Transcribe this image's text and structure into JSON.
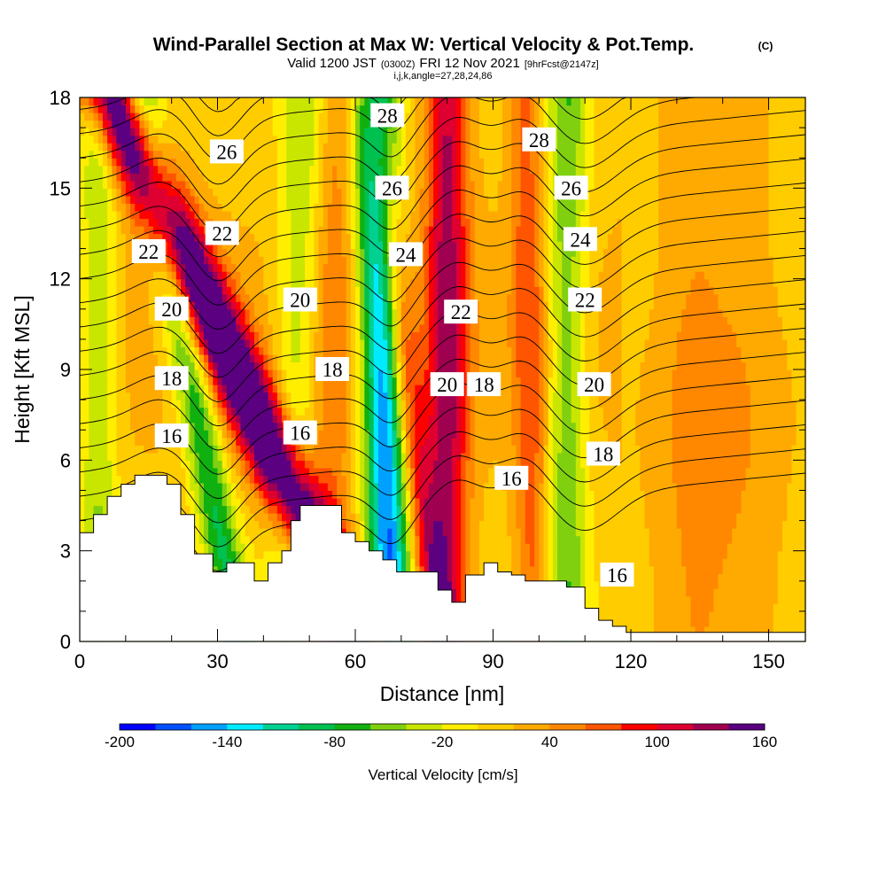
{
  "chart_data": {
    "type": "heatmap",
    "title": "Wind-Parallel Section at Max W: Vertical Velocity & Pot.Temp.",
    "title_mark": "(C)",
    "subtitle_parts": [
      "Valid 1200 JST",
      "(0300Z)",
      "FRI 12 Nov 2021",
      "[9hrFcst@2147z]"
    ],
    "info_line": "i,j,k,angle=27,28,24,86",
    "xlabel": "Distance [nm]",
    "ylabel": "Height [Kft MSL]",
    "xlim": [
      0,
      158
    ],
    "ylim": [
      0,
      18
    ],
    "x_ticks": [
      "0",
      "30",
      "60",
      "90",
      "120",
      "150"
    ],
    "y_ticks": [
      "0",
      "3",
      "6",
      "9",
      "12",
      "15",
      "18"
    ],
    "colorbar": {
      "title": "Vertical Velocity [cm/s]",
      "tick_labels": [
        "-200",
        "-140",
        "-80",
        "-20",
        "40",
        "100",
        "160"
      ],
      "colors": [
        "#0000ff",
        "#0050ff",
        "#00a0ff",
        "#00eaff",
        "#00d090",
        "#00c050",
        "#10b010",
        "#80d010",
        "#c8e600",
        "#ffee00",
        "#ffcc00",
        "#ffaa00",
        "#ff8800",
        "#ff5500",
        "#ff0000",
        "#dd0030",
        "#a00050",
        "#5a0080"
      ]
    },
    "contour_labels": [
      {
        "text": "26",
        "x": 32,
        "y": 16.2
      },
      {
        "text": "22",
        "x": 31,
        "y": 13.5
      },
      {
        "text": "22",
        "x": 15,
        "y": 12.9
      },
      {
        "text": "20",
        "x": 20,
        "y": 11.0
      },
      {
        "text": "18",
        "x": 20,
        "y": 8.7
      },
      {
        "text": "16",
        "x": 20,
        "y": 6.8
      },
      {
        "text": "20",
        "x": 48,
        "y": 11.3
      },
      {
        "text": "18",
        "x": 55,
        "y": 9.0
      },
      {
        "text": "16",
        "x": 48,
        "y": 6.9
      },
      {
        "text": "28",
        "x": 67,
        "y": 17.4
      },
      {
        "text": "26",
        "x": 68,
        "y": 15.0
      },
      {
        "text": "24",
        "x": 71,
        "y": 12.8
      },
      {
        "text": "22",
        "x": 83,
        "y": 10.9
      },
      {
        "text": "20",
        "x": 80,
        "y": 8.5
      },
      {
        "text": "18",
        "x": 88,
        "y": 8.5
      },
      {
        "text": "16",
        "x": 94,
        "y": 5.4
      },
      {
        "text": "28",
        "x": 100,
        "y": 16.6
      },
      {
        "text": "26",
        "x": 107,
        "y": 15.0
      },
      {
        "text": "24",
        "x": 109,
        "y": 13.3
      },
      {
        "text": "22",
        "x": 110,
        "y": 11.3
      },
      {
        "text": "20",
        "x": 112,
        "y": 8.5
      },
      {
        "text": "18",
        "x": 114,
        "y": 6.2
      },
      {
        "text": "16",
        "x": 117,
        "y": 2.2
      }
    ]
  }
}
